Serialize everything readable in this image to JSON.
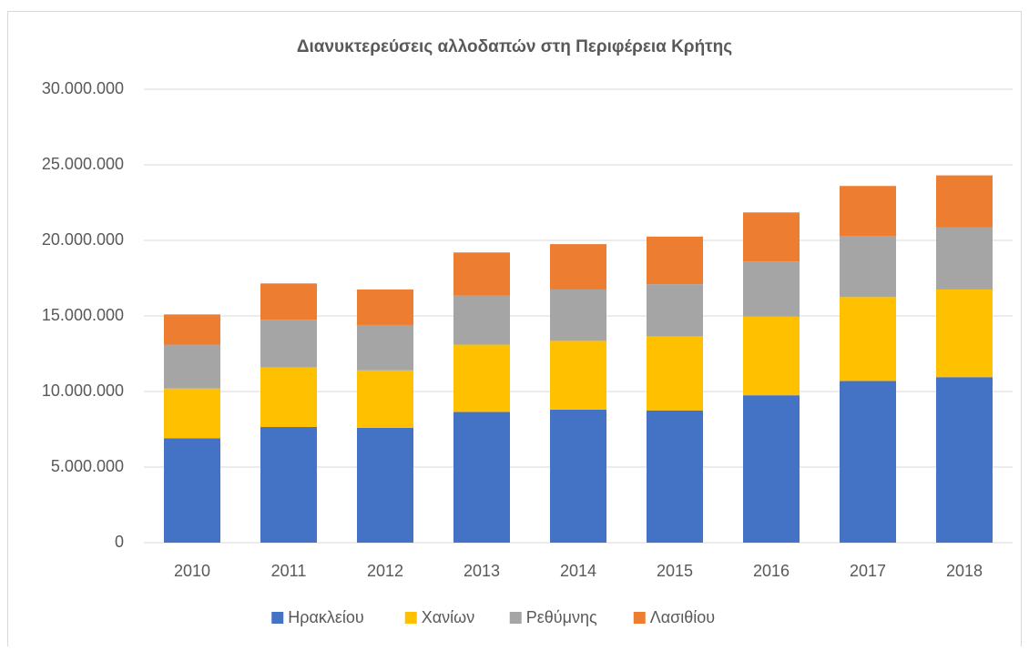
{
  "chart_data": {
    "type": "stacked_bar",
    "title": "Διανυκτερεύσεις αλλοδαπών στη Περιφέρεια Κρήτης",
    "categories": [
      "2010",
      "2011",
      "2012",
      "2013",
      "2014",
      "2015",
      "2016",
      "2017",
      "2018"
    ],
    "series": [
      {
        "name": "Ηρακλείου",
        "color": "#4472c4",
        "values": [
          6900000,
          7650000,
          7600000,
          8650000,
          8800000,
          8750000,
          9750000,
          10700000,
          10950000
        ]
      },
      {
        "name": "Χανίων",
        "color": "#ffc000",
        "values": [
          3300000,
          3950000,
          3800000,
          4450000,
          4550000,
          4900000,
          5200000,
          5550000,
          5800000
        ]
      },
      {
        "name": "Ρεθύμνης",
        "color": "#a5a5a5",
        "values": [
          2900000,
          3150000,
          3000000,
          3250000,
          3400000,
          3450000,
          3650000,
          4050000,
          4100000
        ]
      },
      {
        "name": "Λασιθίου",
        "color": "#ed7d31",
        "values": [
          2000000,
          2400000,
          2350000,
          2850000,
          3000000,
          3150000,
          3250000,
          3300000,
          3450000
        ]
      }
    ],
    "ylim": [
      0,
      30000000
    ],
    "yticks": [
      0,
      {
        "value": 5000000,
        "label": "5.000.000"
      },
      {
        "value": 10000000,
        "label": "10.000.000"
      },
      {
        "value": 15000000,
        "label": "15.000.000"
      },
      {
        "value": 20000000,
        "label": "20.000.000"
      },
      {
        "value": 25000000,
        "label": "25.000.000"
      },
      {
        "value": 30000000,
        "label": "30.000.000"
      }
    ],
    "grid": true,
    "legend": "bottom"
  }
}
